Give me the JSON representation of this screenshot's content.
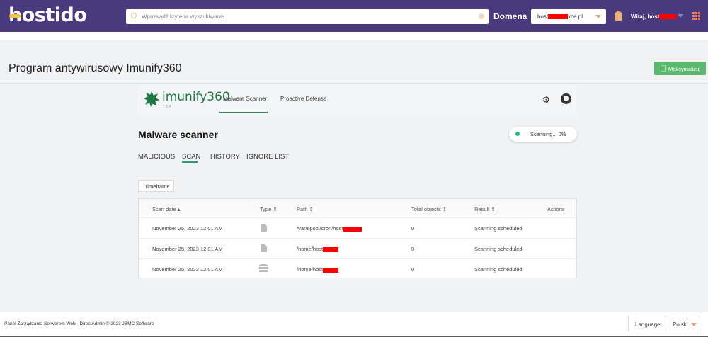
{
  "header": {
    "logo": "hostido",
    "search_placeholder": "Wprowadź kryteria wyszukiwania",
    "domain_label": "Domena",
    "domain_prefix": "host",
    "domain_suffix": "xce.pl",
    "greeting": "Witaj, host",
    "colors": {
      "bg": "#483a7c",
      "accent": "#f5c04a"
    }
  },
  "page": {
    "title": "Program antywirusowy Imunify360",
    "maximize": "Maksymalizuj"
  },
  "imunify": {
    "logo": "imunify360",
    "version": "7.5.4",
    "nav": [
      "Malware Scanner",
      "Proactive Defense"
    ],
    "active_nav": 0
  },
  "scanner": {
    "title": "Malware scanner",
    "status": "Scanning... 0%",
    "tabs": [
      "MALICIOUS",
      "SCAN",
      "HISTORY",
      "IGNORE LIST"
    ],
    "active_tab": 1,
    "timeframe": "Timeframe"
  },
  "table": {
    "headers": [
      "Scan date",
      "Type",
      "Path",
      "Total objects",
      "Result",
      "Actions"
    ],
    "rows": [
      {
        "date": "November 25, 2023 12:01 AM",
        "type": "file-icon",
        "path": "/var/spool/cron/host",
        "total": "0",
        "result": "Scanning scheduled"
      },
      {
        "date": "November 25, 2023 12:01 AM",
        "type": "file-icon",
        "path": "/home/host",
        "total": "0",
        "result": "Scanning scheduled"
      },
      {
        "date": "November 25, 2023 12:01 AM",
        "type": "database-icon",
        "path": "/home/host",
        "total": "0",
        "result": "Scanning scheduled"
      }
    ]
  },
  "footer": {
    "text": "Panel Zarządzania Serwerem Web - DirectAdmin © 2023 JBMC Software",
    "language_label": "Language",
    "language_value": "Polski"
  }
}
